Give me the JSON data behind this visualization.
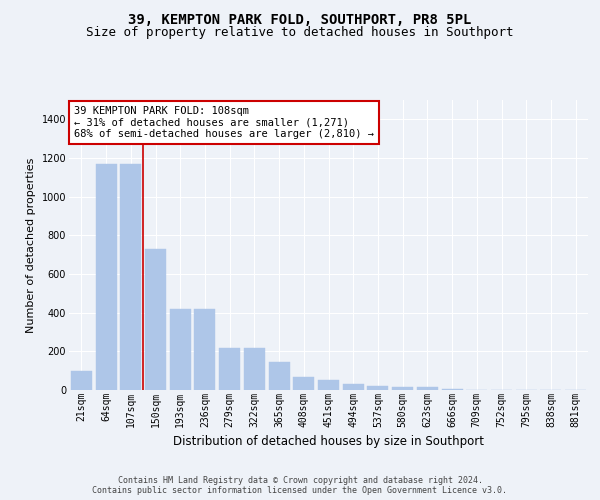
{
  "title": "39, KEMPTON PARK FOLD, SOUTHPORT, PR8 5PL",
  "subtitle": "Size of property relative to detached houses in Southport",
  "xlabel": "Distribution of detached houses by size in Southport",
  "ylabel": "Number of detached properties",
  "categories": [
    "21sqm",
    "64sqm",
    "107sqm",
    "150sqm",
    "193sqm",
    "236sqm",
    "279sqm",
    "322sqm",
    "365sqm",
    "408sqm",
    "451sqm",
    "494sqm",
    "537sqm",
    "580sqm",
    "623sqm",
    "666sqm",
    "709sqm",
    "752sqm",
    "795sqm",
    "838sqm",
    "881sqm"
  ],
  "values": [
    100,
    1170,
    1170,
    730,
    420,
    420,
    215,
    215,
    145,
    65,
    50,
    30,
    20,
    15,
    15,
    5,
    0,
    0,
    0,
    0,
    0
  ],
  "bar_color": "#aec6e8",
  "bar_edge_color": "#aec6e8",
  "vline_x": 2.5,
  "vline_color": "#cc0000",
  "annotation_text": "39 KEMPTON PARK FOLD: 108sqm\n← 31% of detached houses are smaller (1,271)\n68% of semi-detached houses are larger (2,810) →",
  "annotation_box_color": "#ffffff",
  "annotation_box_edge": "#cc0000",
  "bg_color": "#eef2f8",
  "plot_bg_color": "#eef2f8",
  "grid_color": "#ffffff",
  "ylim": [
    0,
    1500
  ],
  "yticks": [
    0,
    200,
    400,
    600,
    800,
    1000,
    1200,
    1400
  ],
  "footer": "Contains HM Land Registry data © Crown copyright and database right 2024.\nContains public sector information licensed under the Open Government Licence v3.0.",
  "title_fontsize": 10,
  "subtitle_fontsize": 9,
  "xlabel_fontsize": 8.5,
  "ylabel_fontsize": 8,
  "tick_fontsize": 7,
  "annotation_fontsize": 7.5,
  "footer_fontsize": 6
}
